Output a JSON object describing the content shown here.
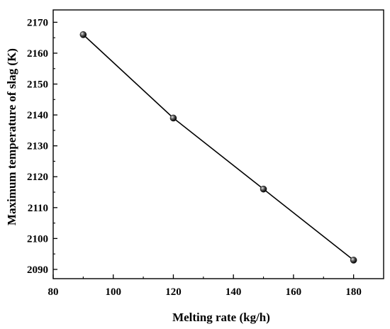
{
  "chart_data": {
    "type": "line",
    "title": "",
    "xlabel": "Melting rate (kg/h)",
    "ylabel": "Maximum temperature of slag (K)",
    "xlim": [
      80,
      190
    ],
    "ylim": [
      2087,
      2174
    ],
    "xticks": [
      80,
      100,
      120,
      140,
      160,
      180
    ],
    "yticks": [
      2090,
      2100,
      2110,
      2120,
      2130,
      2140,
      2150,
      2160,
      2170
    ],
    "grid": false,
    "legend": "none",
    "marker": "sphere",
    "series": [
      {
        "x": [
          90,
          120,
          150,
          180
        ],
        "y": [
          2166,
          2139,
          2116,
          2093
        ]
      }
    ],
    "colors": {
      "line": "#000000",
      "marker": "#1a1a1a",
      "axis": "#000000"
    }
  }
}
